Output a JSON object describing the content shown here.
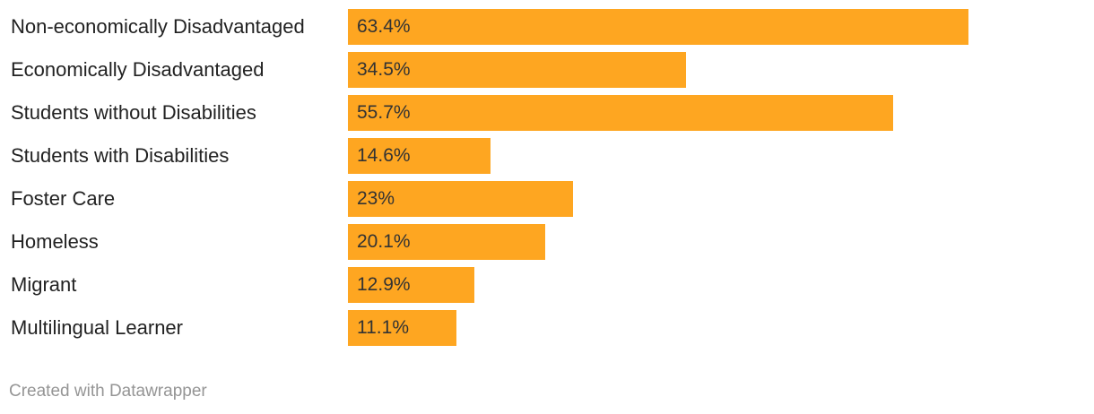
{
  "chart_data": {
    "type": "bar",
    "orientation": "horizontal",
    "categories": [
      "Non-economically Disadvantaged",
      "Economically Disadvantaged",
      "Students without Disabilities",
      "Students with Disabilities",
      "Foster Care",
      "Homeless",
      "Migrant",
      "Multilingual Learner"
    ],
    "values": [
      63.4,
      34.5,
      55.7,
      14.6,
      23,
      20.1,
      12.9,
      11.1
    ],
    "value_labels": [
      "63.4%",
      "34.5%",
      "55.7%",
      "14.6%",
      "23%",
      "20.1%",
      "12.9%",
      "11.1%"
    ],
    "xlim": [
      0,
      76
    ],
    "grid": false,
    "bar_color": "#fea621"
  },
  "footer": {
    "credit": "Created with Datawrapper"
  }
}
